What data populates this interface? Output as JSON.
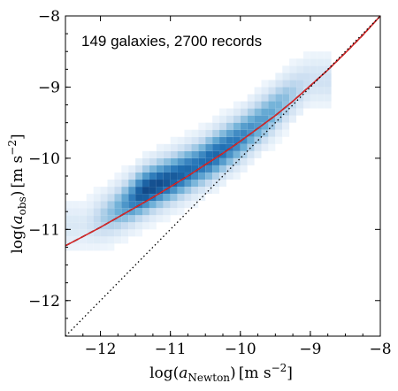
{
  "chart_data": {
    "type": "heatmap",
    "annotation": "149 galaxies, 2700 records",
    "xlabel": {
      "prefix": "log(",
      "var": "a",
      "sub": "Newton",
      "suffix": ")",
      "unit": "[m s",
      "exp": "−2",
      "unit_close": "]"
    },
    "ylabel": {
      "prefix": "log(",
      "var": "a",
      "sub": "obs",
      "suffix": ")",
      "unit": "[m s",
      "exp": "−2",
      "unit_close": "]"
    },
    "xlim": [
      -12.5,
      -8.0
    ],
    "ylim": [
      -12.5,
      -8.0
    ],
    "xticks": [
      -12,
      -11,
      -10,
      -9,
      -8
    ],
    "yticks": [
      -12,
      -11,
      -10,
      -9,
      -8
    ],
    "xtick_labels": [
      "−12",
      "−11",
      "−10",
      "−9",
      "−8"
    ],
    "ytick_labels": [
      "−12",
      "−11",
      "−10",
      "−9",
      "−8"
    ],
    "grid": false,
    "colormap": "Blues",
    "fit_curve": {
      "color": "#d62728",
      "x": [
        -12.5,
        -12.25,
        -12.0,
        -11.75,
        -11.5,
        -11.25,
        -11.0,
        -10.75,
        -10.5,
        -10.25,
        -10.0,
        -9.75,
        -9.5,
        -9.25,
        -9.0,
        -8.75,
        -8.5,
        -8.25,
        -8.0
      ],
      "y": [
        -11.23,
        -11.1,
        -10.97,
        -10.83,
        -10.69,
        -10.55,
        -10.4,
        -10.25,
        -10.09,
        -9.93,
        -9.76,
        -9.58,
        -9.4,
        -9.2,
        -8.98,
        -8.76,
        -8.52,
        -8.27,
        -8.0
      ]
    },
    "dashed_curve": {
      "color": "#000000",
      "style": "dashed"
    },
    "one_to_one_line": {
      "color": "#000000",
      "style": "dotted",
      "x": [
        -12.5,
        -8.0
      ],
      "y": [
        -12.5,
        -8.0
      ]
    },
    "density_core": {
      "x": [
        -12.2,
        -12.0,
        -11.8,
        -11.6,
        -11.4,
        -11.2,
        -11.0,
        -10.8,
        -10.6,
        -10.4,
        -10.2,
        -10.0,
        -9.8,
        -9.6,
        -9.4,
        -9.2,
        -9.0
      ],
      "y": [
        -10.95,
        -10.85,
        -10.75,
        -10.62,
        -10.48,
        -10.38,
        -10.3,
        -10.2,
        -10.1,
        -9.98,
        -9.85,
        -9.72,
        -9.56,
        -9.4,
        -9.22,
        -9.05,
        -8.9
      ],
      "weight": [
        0.15,
        0.3,
        0.45,
        0.65,
        0.9,
        0.9,
        0.85,
        0.8,
        0.75,
        0.8,
        0.75,
        0.7,
        0.6,
        0.55,
        0.45,
        0.3,
        0.2
      ]
    }
  }
}
